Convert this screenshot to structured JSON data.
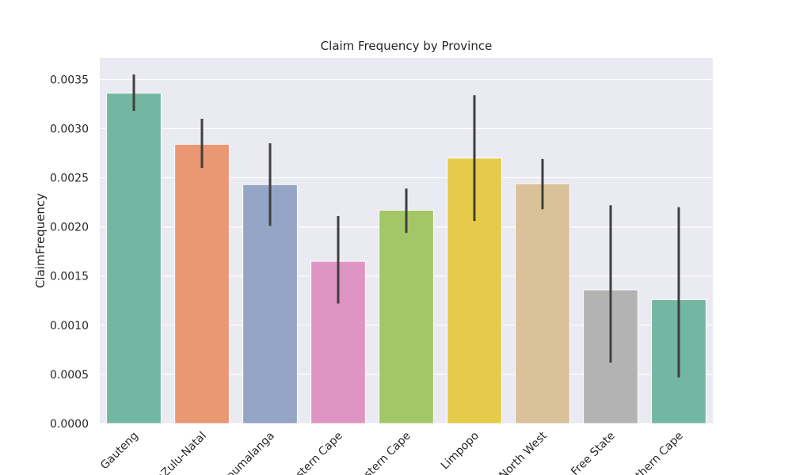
{
  "chart_data": {
    "type": "bar",
    "title": "Claim Frequency by Province",
    "xlabel": "",
    "ylabel": "ClaimFrequency",
    "categories": [
      "Gauteng",
      "KwaZulu-Natal",
      "Mpumalanga",
      "Western Cape",
      "Eastern Cape",
      "Limpopo",
      "North West",
      "Free State",
      "Northern Cape"
    ],
    "values": [
      0.00336,
      0.00284,
      0.00243,
      0.00165,
      0.00217,
      0.0027,
      0.00244,
      0.00136,
      0.00126
    ],
    "error_low": [
      0.00318,
      0.0026,
      0.00201,
      0.00122,
      0.00194,
      0.00206,
      0.00218,
      0.00062,
      0.00047
    ],
    "error_high": [
      0.00355,
      0.0031,
      0.00285,
      0.00211,
      0.00239,
      0.00334,
      0.00269,
      0.00222,
      0.0022
    ],
    "ylim": [
      0,
      0.00372
    ],
    "yticks": [
      0,
      0.0005,
      0.001,
      0.0015,
      0.002,
      0.0025,
      0.003,
      0.0035
    ],
    "ytick_labels": [
      "0.0000",
      "0.0005",
      "0.0010",
      "0.0015",
      "0.0020",
      "0.0025",
      "0.0030",
      "0.0035"
    ],
    "grid": true,
    "colors": [
      "#73b7a2",
      "#ea9774",
      "#95a5c6",
      "#df95c3",
      "#a3c766",
      "#e6cb4b",
      "#d9c19a",
      "#b3b3b3",
      "#73b7a2"
    ],
    "background_color": "#eaeaf2",
    "errorbar_color": "#3f3f3f"
  }
}
